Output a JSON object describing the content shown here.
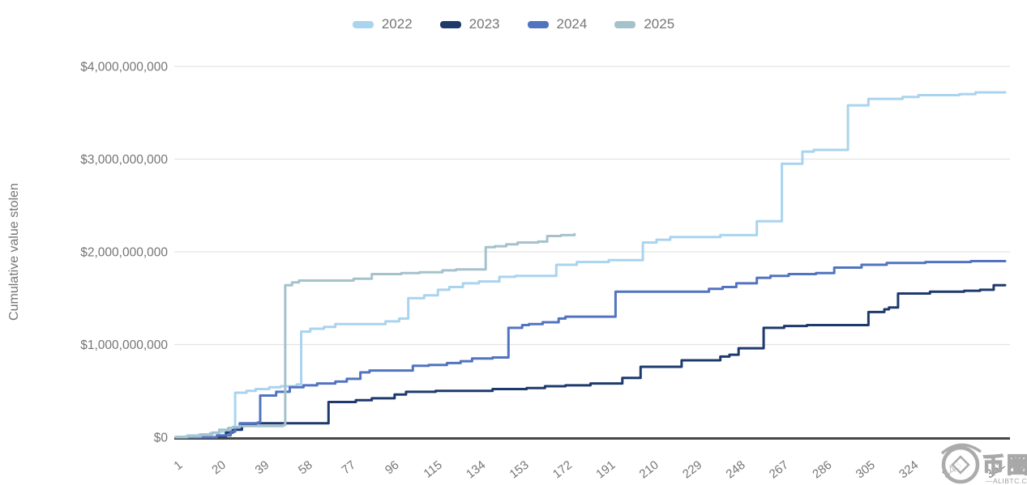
{
  "legend": {
    "items": [
      {
        "label": "2022",
        "color": "#aad4ee"
      },
      {
        "label": "2023",
        "color": "#1e3a6d"
      },
      {
        "label": "2024",
        "color": "#5274c0"
      },
      {
        "label": "2025",
        "color": "#a5c2cc"
      }
    ]
  },
  "watermark": {
    "cjk": "币圈网",
    "site": "—ALIBTC.COM—"
  },
  "colors": {
    "grid": "#e3e3e3",
    "axis": "#474747",
    "text": "#757575"
  },
  "chart_data": {
    "type": "line",
    "step": true,
    "title": "",
    "xlabel": "",
    "ylabel": "Cumulative value stolen",
    "y_unit": "USD",
    "values_unit": "USD_billions",
    "xlim": [
      1,
      365
    ],
    "ylim_billions": [
      0,
      4
    ],
    "grid": "horizontal",
    "legend_position": "top-center",
    "x_ticks": [
      1,
      20,
      39,
      58,
      77,
      96,
      115,
      134,
      153,
      172,
      191,
      210,
      229,
      248,
      267,
      286,
      305,
      324,
      343,
      362
    ],
    "y_ticks": [
      {
        "value": 0,
        "label": "$0"
      },
      {
        "value": 1,
        "label": "$1,000,000,000"
      },
      {
        "value": 2,
        "label": "$2,000,000,000"
      },
      {
        "value": 3,
        "label": "$3,000,000,000"
      },
      {
        "value": 4,
        "label": "$4,000,000,000"
      }
    ],
    "series": [
      {
        "name": "2022",
        "color": "#aad4ee",
        "end_day": 365,
        "points": [
          [
            1,
            0.005
          ],
          [
            6,
            0.02
          ],
          [
            11,
            0.03
          ],
          [
            16,
            0.045
          ],
          [
            20,
            0.06
          ],
          [
            23,
            0.075
          ],
          [
            25,
            0.09
          ],
          [
            26,
            0.1
          ],
          [
            27,
            0.48
          ],
          [
            32,
            0.5
          ],
          [
            36,
            0.52
          ],
          [
            42,
            0.54
          ],
          [
            47,
            0.55
          ],
          [
            54,
            0.57
          ],
          [
            56,
            1.14
          ],
          [
            60,
            1.17
          ],
          [
            66,
            1.19
          ],
          [
            71,
            1.22
          ],
          [
            93,
            1.25
          ],
          [
            99,
            1.28
          ],
          [
            103,
            1.5
          ],
          [
            110,
            1.53
          ],
          [
            116,
            1.59
          ],
          [
            121,
            1.62
          ],
          [
            127,
            1.66
          ],
          [
            134,
            1.68
          ],
          [
            143,
            1.73
          ],
          [
            150,
            1.74
          ],
          [
            168,
            1.86
          ],
          [
            177,
            1.89
          ],
          [
            191,
            1.91
          ],
          [
            206,
            2.1
          ],
          [
            212,
            2.13
          ],
          [
            218,
            2.16
          ],
          [
            240,
            2.18
          ],
          [
            256,
            2.33
          ],
          [
            267,
            2.95
          ],
          [
            276,
            3.08
          ],
          [
            281,
            3.1
          ],
          [
            296,
            3.58
          ],
          [
            305,
            3.65
          ],
          [
            320,
            3.67
          ],
          [
            327,
            3.69
          ],
          [
            345,
            3.7
          ],
          [
            352,
            3.72
          ]
        ]
      },
      {
        "name": "2023",
        "color": "#1e3a6d",
        "end_day": 365,
        "points": [
          [
            1,
            0
          ],
          [
            19,
            0.01
          ],
          [
            23,
            0.05
          ],
          [
            26,
            0.08
          ],
          [
            30,
            0.13
          ],
          [
            36,
            0.15
          ],
          [
            68,
            0.38
          ],
          [
            80,
            0.4
          ],
          [
            87,
            0.42
          ],
          [
            97,
            0.46
          ],
          [
            102,
            0.49
          ],
          [
            115,
            0.5
          ],
          [
            140,
            0.52
          ],
          [
            155,
            0.53
          ],
          [
            163,
            0.55
          ],
          [
            172,
            0.56
          ],
          [
            183,
            0.58
          ],
          [
            197,
            0.64
          ],
          [
            205,
            0.76
          ],
          [
            223,
            0.83
          ],
          [
            240,
            0.87
          ],
          [
            244,
            0.89
          ],
          [
            248,
            0.96
          ],
          [
            259,
            1.18
          ],
          [
            268,
            1.2
          ],
          [
            278,
            1.21
          ],
          [
            305,
            1.35
          ],
          [
            312,
            1.38
          ],
          [
            314,
            1.4
          ],
          [
            318,
            1.55
          ],
          [
            332,
            1.57
          ],
          [
            347,
            1.58
          ],
          [
            354,
            1.59
          ],
          [
            360,
            1.64
          ]
        ]
      },
      {
        "name": "2024",
        "color": "#5274c0",
        "end_day": 365,
        "points": [
          [
            1,
            0
          ],
          [
            19,
            0.02
          ],
          [
            25,
            0.06
          ],
          [
            27,
            0.1
          ],
          [
            29,
            0.15
          ],
          [
            37,
            0.16
          ],
          [
            38,
            0.45
          ],
          [
            45,
            0.49
          ],
          [
            51,
            0.54
          ],
          [
            57,
            0.56
          ],
          [
            63,
            0.58
          ],
          [
            71,
            0.6
          ],
          [
            76,
            0.63
          ],
          [
            82,
            0.7
          ],
          [
            86,
            0.72
          ],
          [
            105,
            0.77
          ],
          [
            112,
            0.78
          ],
          [
            120,
            0.8
          ],
          [
            126,
            0.82
          ],
          [
            131,
            0.85
          ],
          [
            140,
            0.86
          ],
          [
            147,
            1.18
          ],
          [
            153,
            1.21
          ],
          [
            156,
            1.22
          ],
          [
            162,
            1.24
          ],
          [
            169,
            1.28
          ],
          [
            172,
            1.3
          ],
          [
            194,
            1.57
          ],
          [
            235,
            1.6
          ],
          [
            241,
            1.62
          ],
          [
            247,
            1.66
          ],
          [
            256,
            1.72
          ],
          [
            262,
            1.74
          ],
          [
            270,
            1.76
          ],
          [
            282,
            1.77
          ],
          [
            290,
            1.83
          ],
          [
            302,
            1.86
          ],
          [
            313,
            1.88
          ],
          [
            330,
            1.89
          ],
          [
            350,
            1.9
          ]
        ]
      },
      {
        "name": "2025",
        "color": "#a5c2cc",
        "end_day": 176,
        "points": [
          [
            1,
            0
          ],
          [
            6,
            0.01
          ],
          [
            12,
            0.03
          ],
          [
            17,
            0.05
          ],
          [
            20,
            0.08
          ],
          [
            24,
            0.1
          ],
          [
            26,
            0.11
          ],
          [
            29,
            0.12
          ],
          [
            48,
            0.13
          ],
          [
            49,
            1.64
          ],
          [
            52,
            1.67
          ],
          [
            55,
            1.69
          ],
          [
            79,
            1.71
          ],
          [
            87,
            1.76
          ],
          [
            100,
            1.77
          ],
          [
            108,
            1.78
          ],
          [
            118,
            1.8
          ],
          [
            124,
            1.81
          ],
          [
            137,
            2.05
          ],
          [
            141,
            2.06
          ],
          [
            146,
            2.08
          ],
          [
            151,
            2.1
          ],
          [
            160,
            2.11
          ],
          [
            164,
            2.17
          ],
          [
            170,
            2.18
          ],
          [
            176,
            2.19
          ]
        ]
      }
    ]
  }
}
